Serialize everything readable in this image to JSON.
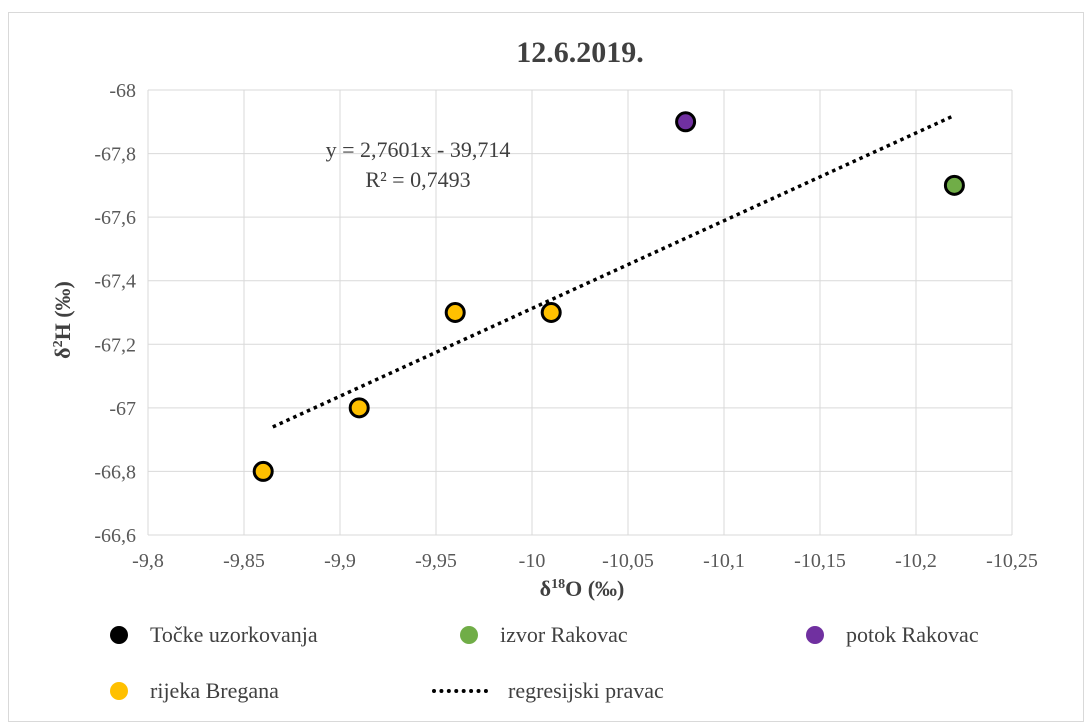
{
  "chart_data": {
    "type": "scatter",
    "title": "12.6.2019.",
    "xlabel": "δ18O (‰)",
    "xlabel_base": "δ",
    "xlabel_sup": "18",
    "xlabel_rest": "O (‰)",
    "ylabel": "δ2H (‰)",
    "ylabel_base": "δ",
    "ylabel_sup": "2",
    "ylabel_rest": "H (‰)",
    "x_reversed": true,
    "xlim": [
      -9.8,
      -10.25
    ],
    "ylim": [
      -66.6,
      -68
    ],
    "x_ticks": [
      -9.8,
      -9.85,
      -9.9,
      -9.95,
      -10,
      -10.05,
      -10.1,
      -10.15,
      -10.2,
      -10.25
    ],
    "x_tick_labels": [
      "-9,8",
      "-9,85",
      "-9,9",
      "-9,95",
      "-10",
      "-10,05",
      "-10,1",
      "-10,15",
      "-10,2",
      "-10,25"
    ],
    "y_ticks": [
      -66.6,
      -66.8,
      -67,
      -67.2,
      -67.4,
      -67.6,
      -67.8,
      -68
    ],
    "y_tick_labels": [
      "-66,6",
      "-66,8",
      "-67",
      "-67,2",
      "-67,4",
      "-67,6",
      "-67,8",
      "-68"
    ],
    "grid": true,
    "legend_position": "bottom",
    "series": [
      {
        "name": "rijeka Bregana",
        "color": "#ffc000",
        "points": [
          {
            "x": -9.86,
            "y": -66.8
          },
          {
            "x": -9.91,
            "y": -67.0
          },
          {
            "x": -9.96,
            "y": -67.3
          },
          {
            "x": -10.01,
            "y": -67.3
          }
        ]
      },
      {
        "name": "potok Rakovac",
        "color": "#7030a0",
        "points": [
          {
            "x": -10.08,
            "y": -67.9
          }
        ]
      },
      {
        "name": "izvor Rakovac",
        "color": "#70ad47",
        "points": [
          {
            "x": -10.22,
            "y": -67.7
          }
        ]
      }
    ],
    "trendline": {
      "name": "regresijski pravac",
      "x_start": -9.865,
      "x_end": -10.22,
      "y_start": -66.94,
      "y_end": -67.92,
      "equation": "y = 2,7601x  - 39,714",
      "r_squared": "R² = 0,7493"
    },
    "legend": [
      {
        "label": "Točke uzorkovanja",
        "color": "#000000",
        "kind": "dot"
      },
      {
        "label": "izvor Rakovac",
        "color": "#70ad47",
        "kind": "dot"
      },
      {
        "label": "potok Rakovac",
        "color": "#7030a0",
        "kind": "dot"
      },
      {
        "label": "rijeka Bregana",
        "color": "#ffc000",
        "kind": "dot"
      },
      {
        "label": "regresijski pravac",
        "color": "#000000",
        "kind": "dotted-line"
      }
    ]
  }
}
